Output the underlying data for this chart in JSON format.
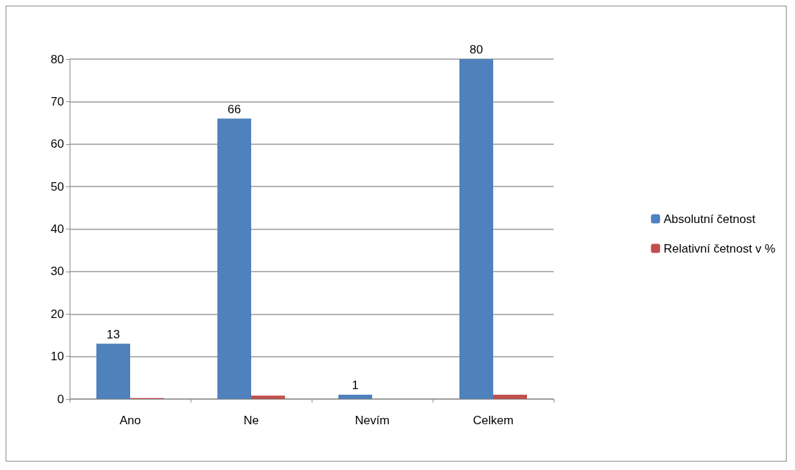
{
  "chart_data": {
    "type": "bar",
    "categories": [
      "Ano",
      "Ne",
      "Nevím",
      "Celkem"
    ],
    "series": [
      {
        "name": "Absolutní četnost",
        "color": "#4f81bd",
        "values": [
          13,
          66,
          1,
          80
        ],
        "value_labels": [
          "13",
          "66",
          "1",
          "80"
        ]
      },
      {
        "name": "Relativní četnost v %",
        "color": "#c0504d",
        "values": [
          0.2,
          0.8,
          0,
          1
        ]
      }
    ],
    "ylim": [
      0,
      80
    ],
    "yticks": [
      0,
      10,
      20,
      30,
      40,
      50,
      60,
      70,
      80
    ],
    "grid": "y",
    "legend": "right"
  }
}
